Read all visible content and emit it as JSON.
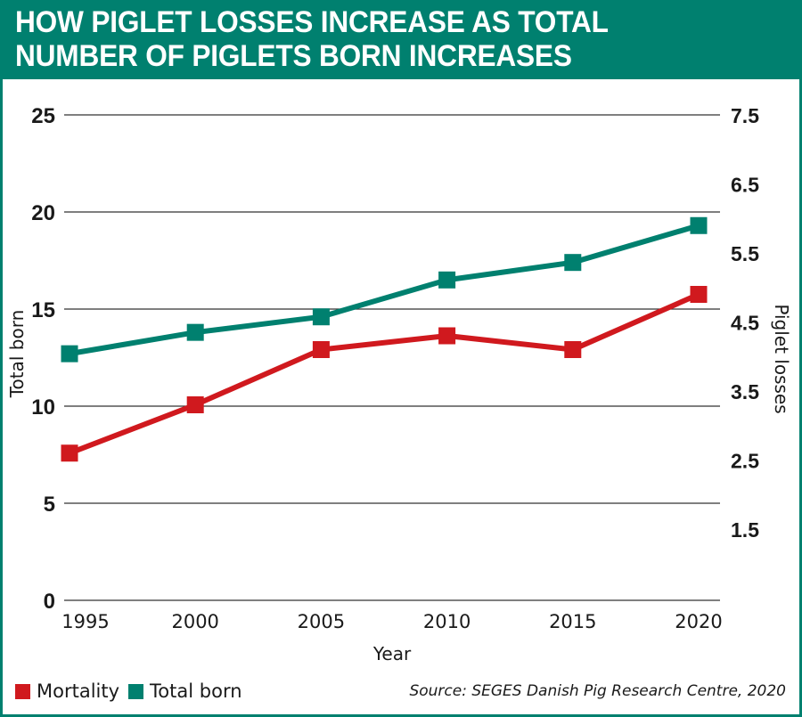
{
  "header": {
    "title_line1": "HOW PIGLET LOSSES INCREASE AS TOTAL",
    "title_line2": "NUMBER OF PIGLETS BORN INCREASES"
  },
  "colors": {
    "brand": "#00806f",
    "mortality": "#d0191e",
    "total_born": "#00806f",
    "gridline": "#333333"
  },
  "legend": {
    "items": [
      {
        "label": "Mortality",
        "color": "#d0191e"
      },
      {
        "label": "Total born",
        "color": "#00806f"
      }
    ]
  },
  "source": "Source: SEGES Danish Pig Research Centre, 2020",
  "chart_data": {
    "type": "line",
    "title": "HOW PIGLET LOSSES INCREASE AS TOTAL NUMBER OF PIGLETS BORN INCREASES",
    "xlabel": "Year",
    "ylabel": "Total born",
    "ylabel_right": "Piglet losses",
    "x": [
      "1995",
      "2000",
      "2005",
      "2010",
      "2015",
      "2020"
    ],
    "y_left_ticks": [
      "0",
      "5",
      "10",
      "15",
      "20",
      "25"
    ],
    "y_left_range": [
      0,
      25
    ],
    "y_right_ticks": [
      "1.5",
      "2.5",
      "3.5",
      "4.5",
      "5.5",
      "6.5",
      "7.5"
    ],
    "y_right_range": [
      1.5,
      7.5
    ],
    "grid": true,
    "legend_position": "bottom-left",
    "series": [
      {
        "name": "Mortality",
        "axis": "right",
        "color": "#d0191e",
        "values": [
          2.6,
          3.3,
          4.1,
          4.3,
          4.1,
          4.9
        ]
      },
      {
        "name": "Total born",
        "axis": "left",
        "color": "#00806f",
        "values": [
          12.7,
          13.8,
          14.6,
          16.5,
          17.4,
          19.3
        ]
      }
    ]
  }
}
